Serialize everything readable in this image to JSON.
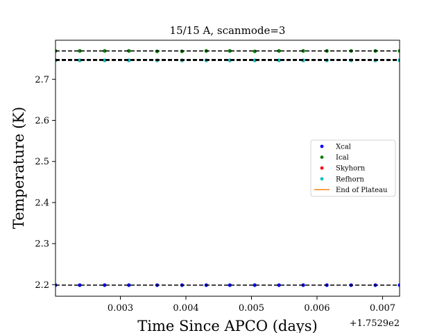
{
  "chart_data": {
    "type": "scatter",
    "title": "15/15 A, scanmode=3",
    "xlabel": "Time Since APCO (days)",
    "ylabel": "Temperature (K)",
    "x_offset_label": "+1.7529e2",
    "xlim": [
      0.00201,
      0.00726
    ],
    "ylim": [
      2.172,
      2.795
    ],
    "x_ticks": [
      0.003,
      0.004,
      0.005,
      0.006,
      0.007
    ],
    "x_tick_labels": [
      "0.003",
      "0.004",
      "0.005",
      "0.006",
      "0.007"
    ],
    "y_ticks": [
      2.2,
      2.3,
      2.4,
      2.5,
      2.6,
      2.7
    ],
    "y_tick_labels": [
      "2.2",
      "2.3",
      "2.4",
      "2.5",
      "2.6",
      "2.7"
    ],
    "x": [
      0.00201,
      0.00238,
      0.00276,
      0.00313,
      0.00356,
      0.00394,
      0.00431,
      0.00467,
      0.00505,
      0.00542,
      0.00579,
      0.00615,
      0.00652,
      0.00689,
      0.00726
    ],
    "series": [
      {
        "name": "Xcal",
        "color": "#0000ff",
        "marker": "dot",
        "values": [
          2.199,
          2.199,
          2.199,
          2.199,
          2.199,
          2.199,
          2.199,
          2.199,
          2.199,
          2.199,
          2.199,
          2.199,
          2.199,
          2.199,
          2.199
        ]
      },
      {
        "name": "Ical",
        "color": "#008000",
        "marker": "dot",
        "values": [
          2.769,
          2.769,
          2.769,
          2.769,
          2.768,
          2.768,
          2.769,
          2.769,
          2.768,
          2.769,
          2.769,
          2.769,
          2.769,
          2.769,
          2.769
        ]
      },
      {
        "name": "Skyhorn",
        "color": "#ff0000",
        "marker": "dot",
        "values": [
          2.746,
          2.746,
          2.746,
          2.746,
          2.746,
          2.746,
          2.746,
          2.746,
          2.746,
          2.746,
          2.746,
          2.746,
          2.746,
          2.746,
          2.746
        ]
      },
      {
        "name": "Refhorn",
        "color": "#00bfbf",
        "marker": "dot",
        "values": [
          2.746,
          2.746,
          2.746,
          2.746,
          2.746,
          2.746,
          2.746,
          2.746,
          2.746,
          2.746,
          2.746,
          2.746,
          2.746,
          2.746,
          2.746
        ]
      },
      {
        "name": "End of Plateau",
        "color": "#ff7f0e",
        "marker": "line",
        "values": []
      }
    ],
    "reference_lines": [
      {
        "y": 2.769,
        "style": "dashed",
        "color": "#000000"
      },
      {
        "y": 2.748,
        "style": "dashed",
        "color": "#000000"
      },
      {
        "y": 2.746,
        "style": "dashed",
        "color": "#000000"
      },
      {
        "y": 2.199,
        "style": "dashed",
        "color": "#000000"
      }
    ],
    "legend_position": "center-right",
    "grid": false
  }
}
